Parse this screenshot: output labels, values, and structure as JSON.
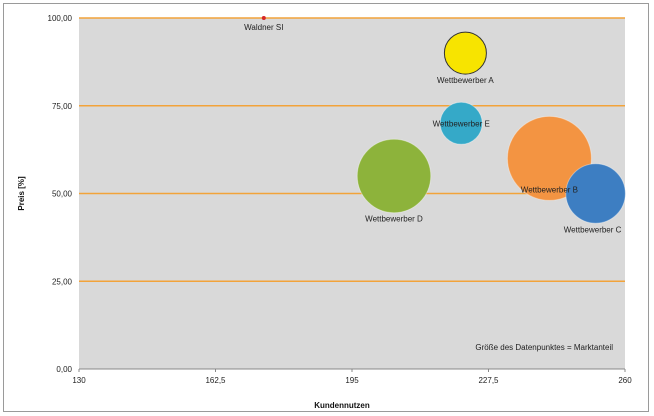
{
  "chart_data": {
    "type": "scatter",
    "subtype": "bubble",
    "xlabel": "Kundennutzen",
    "ylabel": "Preis [%]",
    "xlim": [
      130,
      260
    ],
    "ylim": [
      0,
      100
    ],
    "x_ticks": [
      "130",
      "162,5",
      "195",
      "227,5",
      "260"
    ],
    "y_ticks": [
      "0,00",
      "25,00",
      "50,00",
      "75,00",
      "100,00"
    ],
    "annotation": "Größe des Datenpunktes = Marktanteil",
    "grid": "horizontal",
    "colors": {
      "plot_bg": "#d9d9d9",
      "gridline": "#f2a33a"
    },
    "points": [
      {
        "label": "Waldner SI",
        "x": 174,
        "y": 100,
        "size": 0.5,
        "color": "#d62728"
      },
      {
        "label": "Wettbewerber A",
        "x": 222,
        "y": 90,
        "size": 6,
        "color": "#f7e400"
      },
      {
        "label": "Wettbewerber E",
        "x": 221,
        "y": 70,
        "size": 6,
        "color": "#35a9c8"
      },
      {
        "label": "Wettbewerber D",
        "x": 205,
        "y": 55,
        "size": 10.5,
        "color": "#8db33b"
      },
      {
        "label": "Wettbewerber B",
        "x": 242,
        "y": 60,
        "size": 12,
        "color": "#f39442"
      },
      {
        "label": "Wettbewerber C",
        "x": 253,
        "y": 50,
        "size": 8.5,
        "color": "#3d7ec2"
      }
    ]
  }
}
